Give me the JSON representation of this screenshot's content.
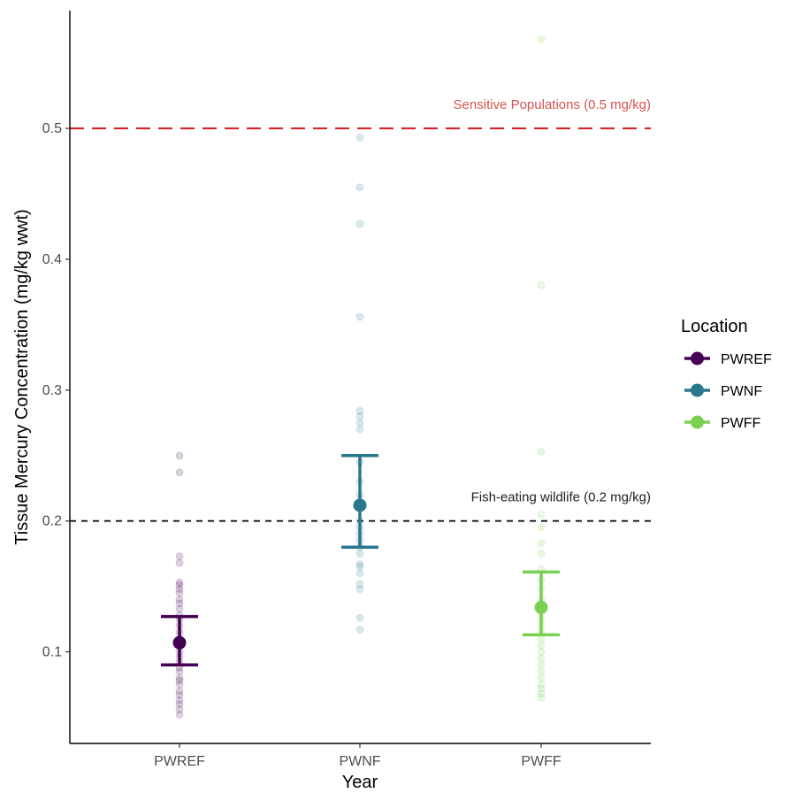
{
  "chart_data": {
    "type": "scatter",
    "title": "",
    "xlabel": "Year",
    "ylabel": "Tissue Mercury Concentration (mg/kg wwt)",
    "categories": [
      "PWREF",
      "PWNF",
      "PWFF"
    ],
    "ylim": [
      0.03,
      0.59
    ],
    "yticks": [
      0.1,
      0.2,
      0.3,
      0.4,
      0.5
    ],
    "grid": false,
    "legend": {
      "title": "Location",
      "position": "right",
      "entries": [
        "PWREF",
        "PWNF",
        "PWFF"
      ]
    },
    "reference_lines": [
      {
        "label": "Sensitive Populations (0.5 mg/kg)",
        "y": 0.5,
        "color": "#d7262a",
        "style": "long-dash"
      },
      {
        "label": "Fish-eating wildlife (0.2 mg/kg)",
        "y": 0.2,
        "color": "#000000",
        "style": "dash"
      }
    ],
    "series": [
      {
        "name": "PWREF",
        "category": "PWREF",
        "color": "#440154",
        "mean": 0.107,
        "ci_low": 0.09,
        "ci_high": 0.127,
        "points": [
          0.25,
          0.237,
          0.173,
          0.168,
          0.153,
          0.151,
          0.148,
          0.145,
          0.14,
          0.137,
          0.133,
          0.128,
          0.125,
          0.12,
          0.115,
          0.11,
          0.105,
          0.1,
          0.096,
          0.092,
          0.088,
          0.085,
          0.08,
          0.078,
          0.075,
          0.07,
          0.067,
          0.063,
          0.06,
          0.056,
          0.052
        ]
      },
      {
        "name": "PWNF",
        "category": "PWNF",
        "color": "#2a788e",
        "mean": 0.212,
        "ci_low": 0.18,
        "ci_high": 0.25,
        "points": [
          0.493,
          0.455,
          0.427,
          0.356,
          0.284,
          0.28,
          0.275,
          0.27,
          0.245,
          0.23,
          0.22,
          0.21,
          0.2,
          0.195,
          0.19,
          0.185,
          0.18,
          0.175,
          0.167,
          0.165,
          0.16,
          0.152,
          0.148,
          0.126,
          0.117
        ]
      },
      {
        "name": "PWFF",
        "category": "PWFF",
        "color": "#7ad151",
        "mean": 0.134,
        "ci_low": 0.113,
        "ci_high": 0.161,
        "points": [
          0.568,
          0.38,
          0.253,
          0.205,
          0.195,
          0.183,
          0.175,
          0.163,
          0.155,
          0.148,
          0.14,
          0.135,
          0.13,
          0.125,
          0.12,
          0.115,
          0.11,
          0.105,
          0.1,
          0.095,
          0.09,
          0.085,
          0.08,
          0.075,
          0.072,
          0.068,
          0.065
        ]
      }
    ]
  }
}
